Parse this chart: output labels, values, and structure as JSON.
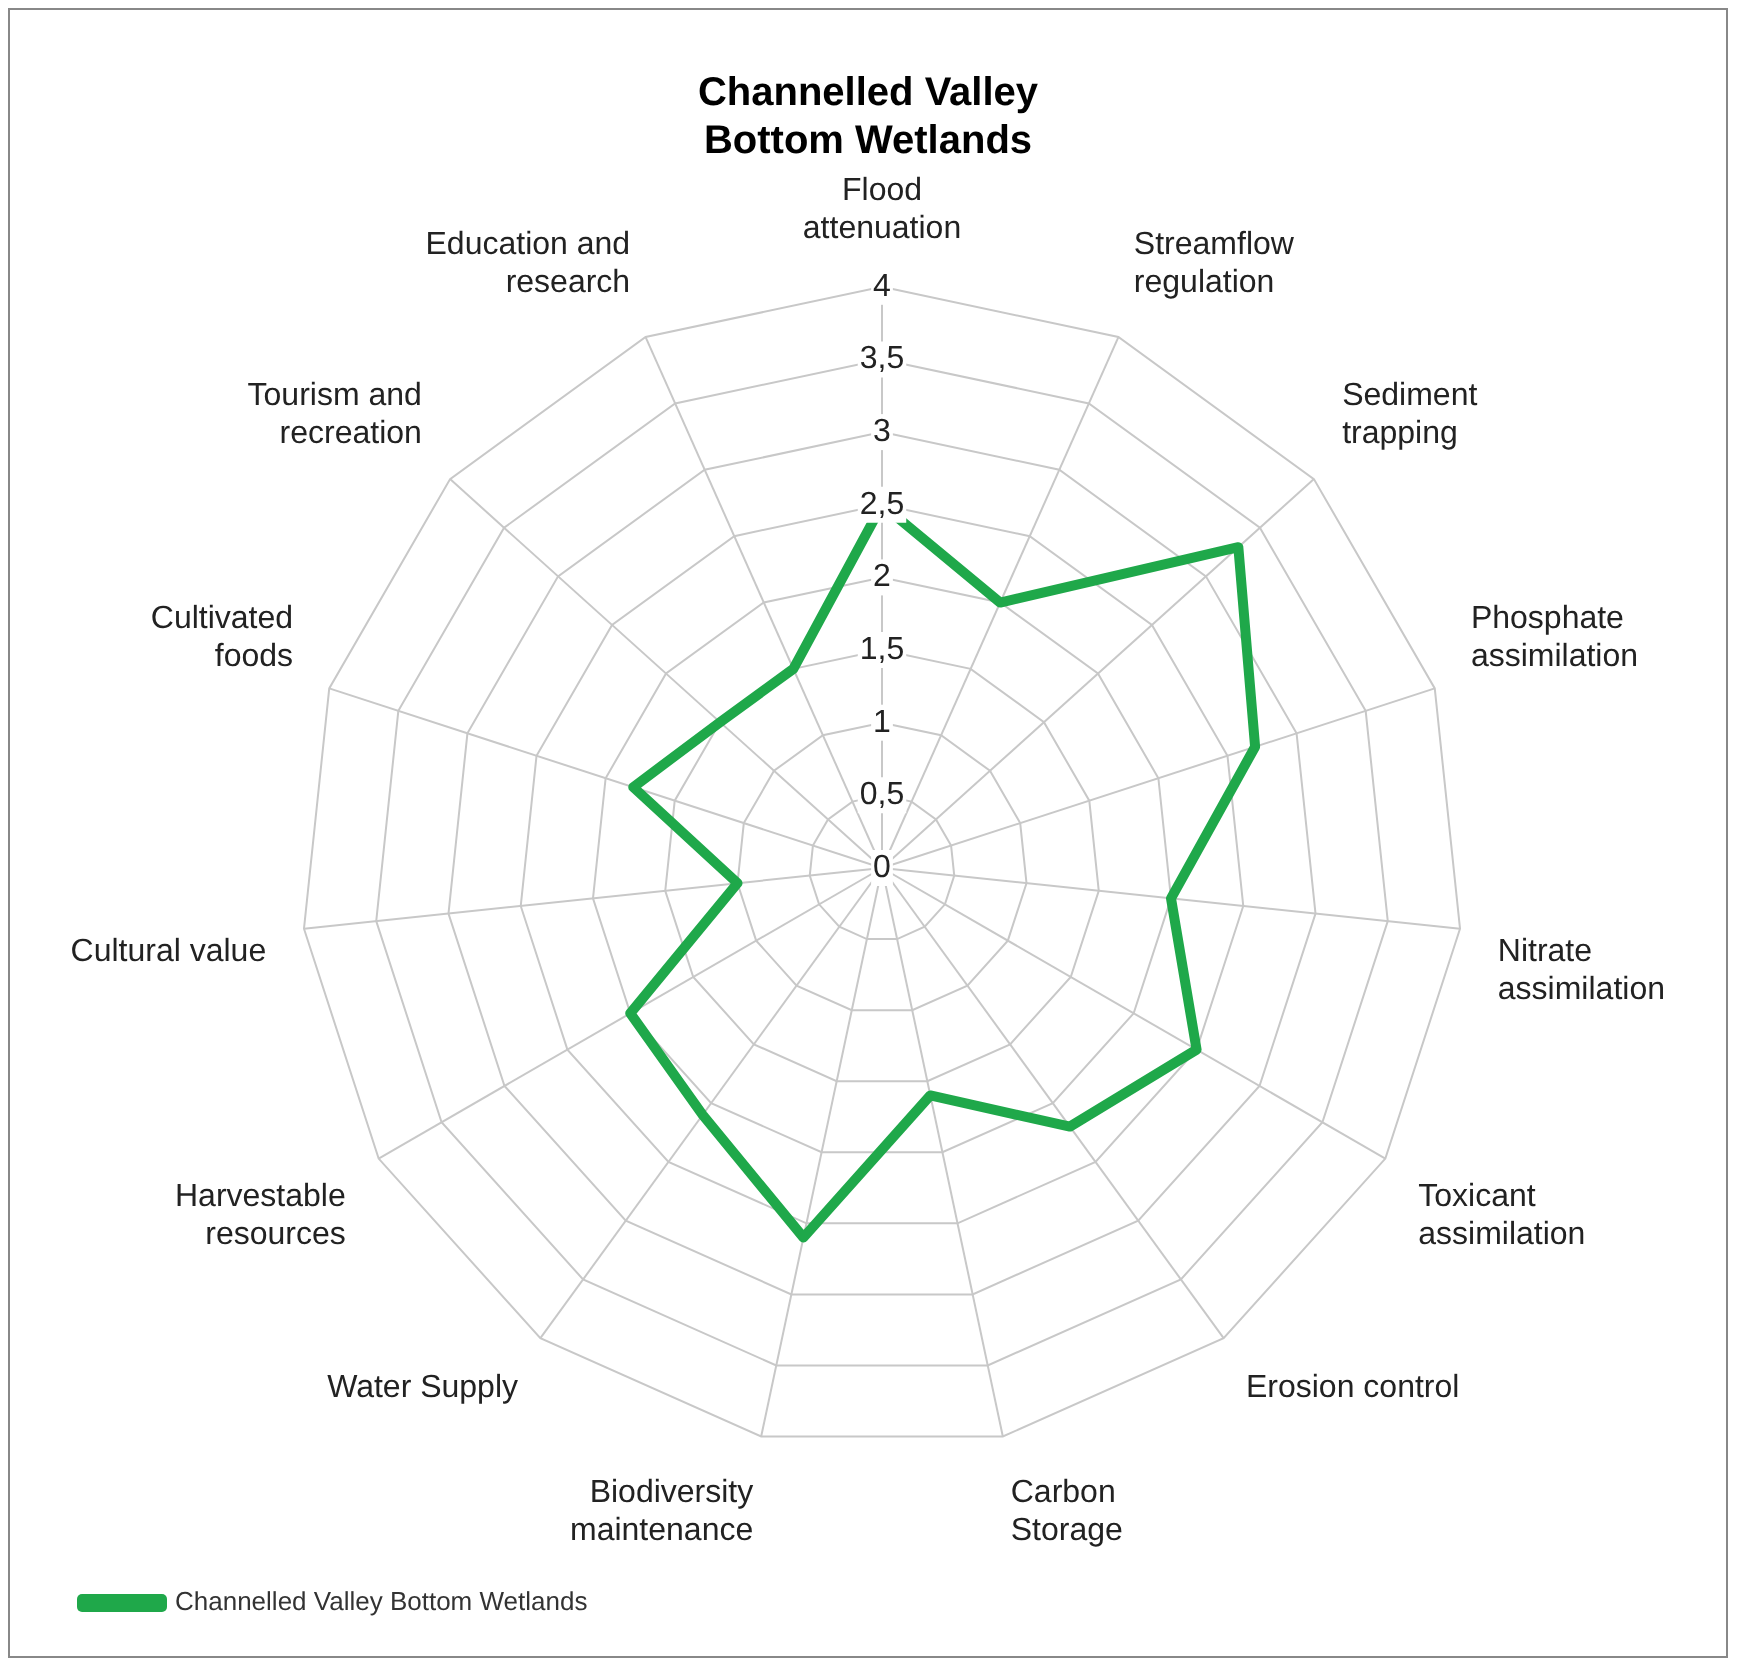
{
  "chart_data": {
    "type": "radar",
    "title": "Channelled Valley Bottom Wetlands",
    "categories": [
      "Flood attenuation",
      "Streamflow regulation",
      "Sediment trapping",
      "Phosphate assimilation",
      "Nitrate assimilation",
      "Toxicant assimilation",
      "Erosion control",
      "Carbon Storage",
      "Biodiversity maintenance",
      "Water Supply",
      "Harvestable resources",
      "Cultural value",
      "Cultivated foods",
      "Tourism and recreation",
      "Education and research"
    ],
    "series": [
      {
        "name": "Channelled Valley Bottom Wetlands",
        "color": "#1fa84a",
        "values": [
          2.5,
          2.0,
          3.3,
          2.7,
          2.0,
          2.5,
          2.2,
          1.6,
          2.6,
          2.1,
          2.0,
          1.0,
          1.8,
          1.5,
          1.5
        ]
      }
    ],
    "ylim": [
      0,
      4
    ],
    "yticks": [
      0,
      {
        "value": 0.5,
        "label": "0,5"
      },
      1,
      {
        "value": 1.5,
        "label": "1,5"
      },
      2,
      {
        "value": 2.5,
        "label": "2,5"
      },
      3,
      {
        "value": 3.5,
        "label": "3,5"
      },
      4
    ],
    "grid": true,
    "legend": "bottom left",
    "marker": "none",
    "line_style": "solid"
  }
}
